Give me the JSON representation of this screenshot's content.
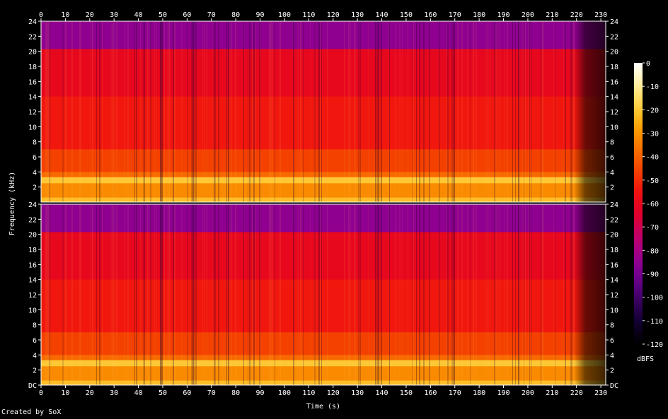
{
  "chart_data": {
    "type": "heatmap",
    "xlabel": "Time (s)",
    "ylabel": "Frequency (kHz)",
    "colorbar_label": "dBFS",
    "credit": "Created by SoX",
    "xlim": [
      0,
      232
    ],
    "ylim": [
      0,
      24
    ],
    "x_ticks": [
      "0",
      "10",
      "20",
      "30",
      "40",
      "50",
      "60",
      "70",
      "80",
      "90",
      "100",
      "110",
      "120",
      "130",
      "140",
      "150",
      "160",
      "170",
      "180",
      "190",
      "200",
      "210",
      "220",
      "230"
    ],
    "y_ticks_top": [
      "2",
      "4",
      "6",
      "8",
      "10",
      "12",
      "14",
      "16",
      "18",
      "20",
      "22",
      "24"
    ],
    "y_ticks_bottom": [
      "DC",
      "2",
      "4",
      "6",
      "8",
      "10",
      "12",
      "14",
      "16",
      "18",
      "20",
      "22",
      "24"
    ],
    "colorbar_ticks": [
      "0",
      "-10",
      "-20",
      "-30",
      "-40",
      "-50",
      "-60",
      "-70",
      "-80",
      "-90",
      "-100",
      "-110",
      "-120"
    ],
    "colorbar_range": [
      -120,
      0
    ],
    "channels": 2,
    "band_levels_dbfs": [
      {
        "from_khz": 0,
        "to_khz": 0.6,
        "level": -22
      },
      {
        "from_khz": 0.6,
        "to_khz": 2.5,
        "level": -32
      },
      {
        "from_khz": 2.5,
        "to_khz": 3.3,
        "level": -20
      },
      {
        "from_khz": 3.3,
        "to_khz": 4,
        "level": -38
      },
      {
        "from_khz": 4,
        "to_khz": 7,
        "level": -46
      },
      {
        "from_khz": 7,
        "to_khz": 14,
        "level": -54
      },
      {
        "from_khz": 14,
        "to_khz": 20.3,
        "level": -60
      },
      {
        "from_khz": 20.3,
        "to_khz": 24,
        "level": -85
      }
    ],
    "tail_start_s": 219,
    "tail_level_dbfs": -110,
    "colors": {
      "background": "#000000",
      "text": "#ffffff",
      "palette": [
        "#000000",
        "#100030",
        "#3a0060",
        "#6a0090",
        "#9a0090",
        "#c0006a",
        "#e0002a",
        "#f01010",
        "#f44000",
        "#f87000",
        "#fca000",
        "#fed040",
        "#fff0a0",
        "#ffffff"
      ]
    }
  }
}
